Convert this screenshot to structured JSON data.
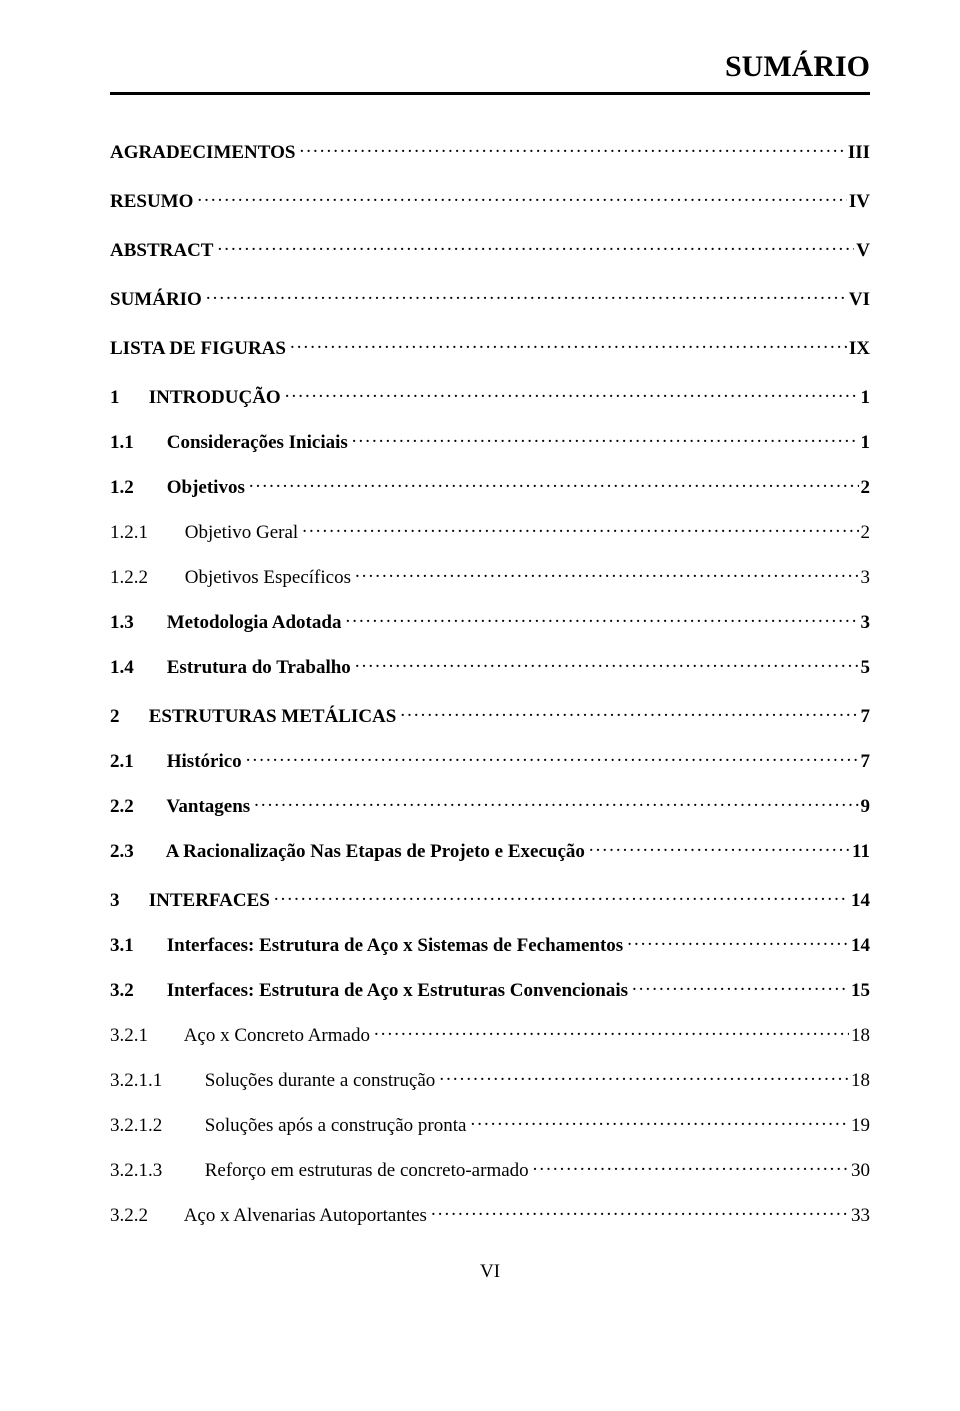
{
  "header": {
    "title": "SUMÁRIO"
  },
  "entries": [
    {
      "label": "AGRADECIMENTOS",
      "page": "III",
      "bold": true,
      "pageBold": true,
      "indent": 0,
      "gapTop": false
    },
    {
      "label": "RESUMO",
      "page": "IV",
      "bold": true,
      "pageBold": true,
      "indent": 0,
      "gapTop": true
    },
    {
      "label": "ABSTRACT",
      "page": "V",
      "bold": true,
      "pageBold": true,
      "indent": 0,
      "gapTop": true
    },
    {
      "label": "SUMÁRIO",
      "page": "VI",
      "bold": true,
      "pageBold": true,
      "indent": 0,
      "gapTop": true
    },
    {
      "label": "LISTA DE FIGURAS",
      "page": "IX",
      "bold": true,
      "pageBold": true,
      "indent": 0,
      "gapTop": true
    },
    {
      "num": "1",
      "label": "INTRODUÇÃO",
      "page": "1",
      "bold": true,
      "pageBold": true,
      "indent": 1,
      "gapTop": true
    },
    {
      "num": "1.1",
      "label": "Considerações Iniciais",
      "page": "1",
      "bold": true,
      "pageBold": true,
      "indent": 2
    },
    {
      "num": "1.2",
      "label": "Objetivos",
      "page": "2",
      "bold": true,
      "pageBold": true,
      "indent": 2
    },
    {
      "num": "1.2.1",
      "label": "Objetivo Geral",
      "page": "2",
      "bold": false,
      "pageBold": false,
      "indent": 3
    },
    {
      "num": "1.2.2",
      "label": "Objetivos Específicos",
      "page": "3",
      "bold": false,
      "pageBold": false,
      "indent": 3
    },
    {
      "num": "1.3",
      "label": "Metodologia Adotada",
      "page": "3",
      "bold": true,
      "pageBold": true,
      "indent": 2
    },
    {
      "num": "1.4",
      "label": "Estrutura do Trabalho",
      "page": "5",
      "bold": true,
      "pageBold": true,
      "indent": 2
    },
    {
      "num": "2",
      "label": "ESTRUTURAS METÁLICAS",
      "page": "7",
      "bold": true,
      "pageBold": true,
      "indent": 1,
      "gapTop": true
    },
    {
      "num": "2.1",
      "label": "Histórico",
      "page": "7",
      "bold": true,
      "pageBold": true,
      "indent": 2
    },
    {
      "num": "2.2",
      "label": "Vantagens",
      "page": "9",
      "bold": true,
      "pageBold": true,
      "indent": 2
    },
    {
      "num": "2.3",
      "label": "A Racionalização Nas Etapas de Projeto e Execução",
      "page": "11",
      "bold": true,
      "pageBold": true,
      "indent": 2
    },
    {
      "num": "3",
      "label": "INTERFACES",
      "page": "14",
      "bold": true,
      "pageBold": true,
      "indent": 1,
      "gapTop": true
    },
    {
      "num": "3.1",
      "label": "Interfaces: Estrutura de Aço x Sistemas de Fechamentos",
      "page": "14",
      "bold": true,
      "pageBold": true,
      "indent": 2
    },
    {
      "num": "3.2",
      "label": "Interfaces: Estrutura de Aço x Estruturas Convencionais",
      "page": "15",
      "bold": true,
      "pageBold": true,
      "indent": 2
    },
    {
      "num": "3.2.1",
      "label": "Aço x Concreto Armado",
      "page": "18",
      "bold": false,
      "pageBold": false,
      "indent": 3
    },
    {
      "num": "3.2.1.1",
      "label": "Soluções durante a construção",
      "page": "18",
      "bold": false,
      "pageBold": false,
      "indent": 4
    },
    {
      "num": "3.2.1.2",
      "label": "Soluções após a construção pronta",
      "page": "19",
      "bold": false,
      "pageBold": false,
      "indent": 4
    },
    {
      "num": "3.2.1.3",
      "label": "Reforço em estruturas de concreto-armado",
      "page": "30",
      "bold": false,
      "pageBold": false,
      "indent": 4
    },
    {
      "num": "3.2.2",
      "label": "Aço x Alvenarias Autoportantes",
      "page": "33",
      "bold": false,
      "pageBold": false,
      "indent": 3
    }
  ],
  "footer": {
    "pageNumber": "VI"
  },
  "style": {
    "background": "#ffffff",
    "text_color": "#000000",
    "rule_color": "#000000",
    "font_family": "Times New Roman",
    "title_fontsize": 30,
    "body_fontsize": 19
  }
}
